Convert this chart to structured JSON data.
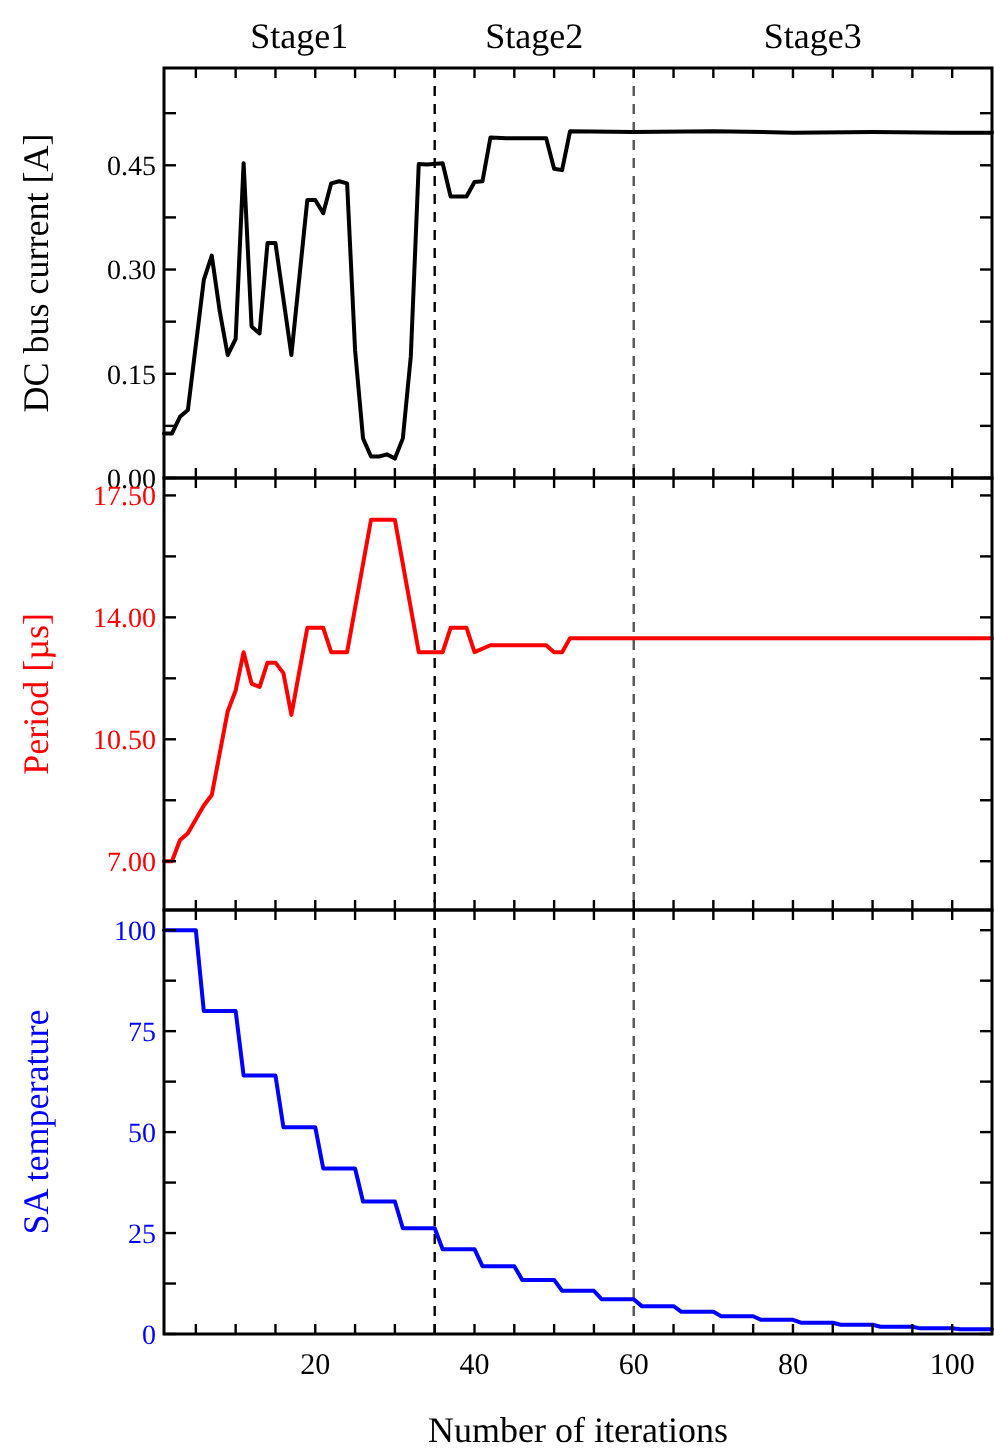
{
  "chart_data": [
    {
      "type": "line",
      "ylabel": "DC bus current [A]",
      "xlim": [
        1,
        105
      ],
      "ylim": [
        0,
        0.59
      ],
      "xticks": [
        {
          "value": 5,
          "label": null
        },
        {
          "value": 10,
          "label": null
        },
        {
          "value": 15,
          "label": null
        },
        {
          "value": 20,
          "label": null
        },
        {
          "value": 25,
          "label": null
        },
        {
          "value": 30,
          "label": null
        },
        {
          "value": 35,
          "label": null
        },
        {
          "value": 40,
          "label": null
        },
        {
          "value": 45,
          "label": null
        },
        {
          "value": 50,
          "label": null
        },
        {
          "value": 55,
          "label": null
        },
        {
          "value": 60,
          "label": null
        },
        {
          "value": 65,
          "label": null
        },
        {
          "value": 70,
          "label": null
        },
        {
          "value": 75,
          "label": null
        },
        {
          "value": 80,
          "label": null
        },
        {
          "value": 85,
          "label": null
        },
        {
          "value": 90,
          "label": null
        },
        {
          "value": 95,
          "label": null
        },
        {
          "value": 100,
          "label": null
        }
      ],
      "yticks": [
        {
          "value": 0,
          "label": "0.00"
        },
        {
          "value": 0.075,
          "label": null
        },
        {
          "value": 0.15,
          "label": "0.15"
        },
        {
          "value": 0.225,
          "label": null
        },
        {
          "value": 0.3,
          "label": "0.30"
        },
        {
          "value": 0.375,
          "label": null
        },
        {
          "value": 0.45,
          "label": "0.45"
        },
        {
          "value": 0.525,
          "label": null
        }
      ],
      "tick_labels": "y",
      "grid": false,
      "marker": "none",
      "line_style": "solid",
      "ref_lines": [
        {
          "axis": "x",
          "value": 35,
          "color": "#000000",
          "line_style": "dashed"
        },
        {
          "axis": "x",
          "value": 60,
          "color": "#555555",
          "line_style": "dashed"
        }
      ],
      "annotations": [
        "Stage1",
        "Stage2",
        "Stage3"
      ],
      "series": [
        {
          "color": "#000000",
          "x": [
            1,
            2,
            3,
            4,
            6,
            7,
            8,
            9,
            10,
            11,
            12,
            13,
            14,
            15,
            17,
            19,
            20,
            21,
            22,
            23,
            24,
            25,
            26,
            27,
            28,
            29,
            30,
            31,
            32,
            33,
            34,
            36,
            37,
            39,
            40,
            41,
            42,
            44,
            49,
            50,
            51,
            52,
            60,
            70,
            80,
            90,
            100,
            105
          ],
          "values": [
            0.064,
            0.064,
            0.088,
            0.098,
            0.285,
            0.32,
            0.24,
            0.177,
            0.2,
            0.453,
            0.218,
            0.208,
            0.338,
            0.338,
            0.177,
            0.4,
            0.4,
            0.381,
            0.424,
            0.427,
            0.424,
            0.184,
            0.057,
            0.031,
            0.031,
            0.034,
            0.028,
            0.057,
            0.175,
            0.452,
            0.451,
            0.453,
            0.405,
            0.405,
            0.426,
            0.427,
            0.49,
            0.489,
            0.489,
            0.445,
            0.443,
            0.499,
            0.498,
            0.499,
            0.497,
            0.498,
            0.497,
            0.497
          ]
        }
      ]
    },
    {
      "type": "line",
      "ylabel": "Period [µs]",
      "xlim": [
        1,
        105
      ],
      "ylim": [
        5.6,
        18
      ],
      "xticks": [
        {
          "value": 5,
          "label": null
        },
        {
          "value": 10,
          "label": null
        },
        {
          "value": 15,
          "label": null
        },
        {
          "value": 20,
          "label": null
        },
        {
          "value": 25,
          "label": null
        },
        {
          "value": 30,
          "label": null
        },
        {
          "value": 35,
          "label": null
        },
        {
          "value": 40,
          "label": null
        },
        {
          "value": 45,
          "label": null
        },
        {
          "value": 50,
          "label": null
        },
        {
          "value": 55,
          "label": null
        },
        {
          "value": 60,
          "label": null
        },
        {
          "value": 65,
          "label": null
        },
        {
          "value": 70,
          "label": null
        },
        {
          "value": 75,
          "label": null
        },
        {
          "value": 80,
          "label": null
        },
        {
          "value": 85,
          "label": null
        },
        {
          "value": 90,
          "label": null
        },
        {
          "value": 95,
          "label": null
        },
        {
          "value": 100,
          "label": null
        }
      ],
      "yticks": [
        {
          "value": 7,
          "label": "7.00"
        },
        {
          "value": 8.75,
          "label": null
        },
        {
          "value": 10.5,
          "label": "10.50"
        },
        {
          "value": 12.25,
          "label": null
        },
        {
          "value": 14,
          "label": "14.00"
        },
        {
          "value": 15.75,
          "label": null
        },
        {
          "value": 17.5,
          "label": "17.50"
        }
      ],
      "tick_labels": "y",
      "grid": false,
      "marker": "none",
      "line_style": "solid",
      "ref_lines": [
        {
          "axis": "x",
          "value": 35,
          "color": "#000000",
          "line_style": "dashed"
        },
        {
          "axis": "x",
          "value": 60,
          "color": "#555555",
          "line_style": "dashed"
        }
      ],
      "series": [
        {
          "color": "#ff0000",
          "x": [
            1,
            2,
            3,
            4,
            6,
            7,
            9,
            10,
            11,
            12,
            13,
            14,
            15,
            16,
            17,
            19,
            21,
            22,
            24,
            27,
            30,
            33,
            36,
            37,
            39,
            40,
            42,
            49,
            50,
            51,
            52,
            105
          ],
          "values": [
            7.0,
            7.0,
            7.6,
            7.8,
            8.6,
            8.9,
            11.3,
            11.9,
            13.0,
            12.1,
            12.0,
            12.7,
            12.7,
            12.4,
            11.2,
            13.7,
            13.7,
            13.0,
            13.0,
            16.8,
            16.8,
            13.0,
            13.0,
            13.7,
            13.7,
            13.0,
            13.2,
            13.2,
            13.0,
            13.0,
            13.4,
            13.4
          ]
        }
      ]
    },
    {
      "type": "line",
      "ylabel": "SA temperature",
      "xlabel": "Number of iterations",
      "xlim": [
        1,
        105
      ],
      "ylim": [
        0,
        105
      ],
      "xticks": [
        {
          "value": 5,
          "label": null
        },
        {
          "value": 10,
          "label": null
        },
        {
          "value": 15,
          "label": null
        },
        20,
        {
          "value": 25,
          "label": null
        },
        {
          "value": 30,
          "label": null
        },
        {
          "value": 35,
          "label": null
        },
        40,
        {
          "value": 45,
          "label": null
        },
        {
          "value": 50,
          "label": null
        },
        {
          "value": 55,
          "label": null
        },
        60,
        {
          "value": 65,
          "label": null
        },
        {
          "value": 70,
          "label": null
        },
        {
          "value": 75,
          "label": null
        },
        80,
        {
          "value": 85,
          "label": null
        },
        {
          "value": 90,
          "label": null
        },
        {
          "value": 95,
          "label": null
        },
        100
      ],
      "yticks": [
        0,
        {
          "value": 12.5,
          "label": null
        },
        25,
        {
          "value": 37.5,
          "label": null
        },
        50,
        {
          "value": 62.5,
          "label": null
        },
        75,
        {
          "value": 87.5,
          "label": null
        },
        100
      ],
      "grid": false,
      "marker": "none",
      "line_style": "solid",
      "ref_lines": [
        {
          "axis": "x",
          "value": 35,
          "color": "#000000",
          "line_style": "dashed"
        },
        {
          "axis": "x",
          "value": 60,
          "color": "#555555",
          "line_style": "dashed"
        }
      ],
      "series": [
        {
          "color": "#0000ff",
          "x": [
            1,
            5,
            6,
            10,
            11,
            15,
            16,
            20,
            21,
            25,
            26,
            30,
            31,
            35,
            36,
            40,
            41,
            45,
            46,
            50,
            51,
            55,
            56,
            60,
            61,
            65,
            66,
            70,
            71,
            75,
            76,
            80,
            81,
            85,
            86,
            90,
            91,
            95,
            96,
            100,
            101,
            105
          ],
          "values": [
            100,
            100,
            80,
            80,
            64,
            64,
            51.2,
            51.2,
            41,
            41,
            32.8,
            32.8,
            26.2,
            26.2,
            21,
            21,
            16.8,
            16.8,
            13.4,
            13.4,
            10.7,
            10.7,
            8.6,
            8.6,
            6.9,
            6.9,
            5.5,
            5.5,
            4.4,
            4.4,
            3.5,
            3.5,
            2.8,
            2.8,
            2.3,
            2.3,
            1.8,
            1.8,
            1.4,
            1.4,
            1.2,
            1.2
          ]
        }
      ]
    }
  ]
}
